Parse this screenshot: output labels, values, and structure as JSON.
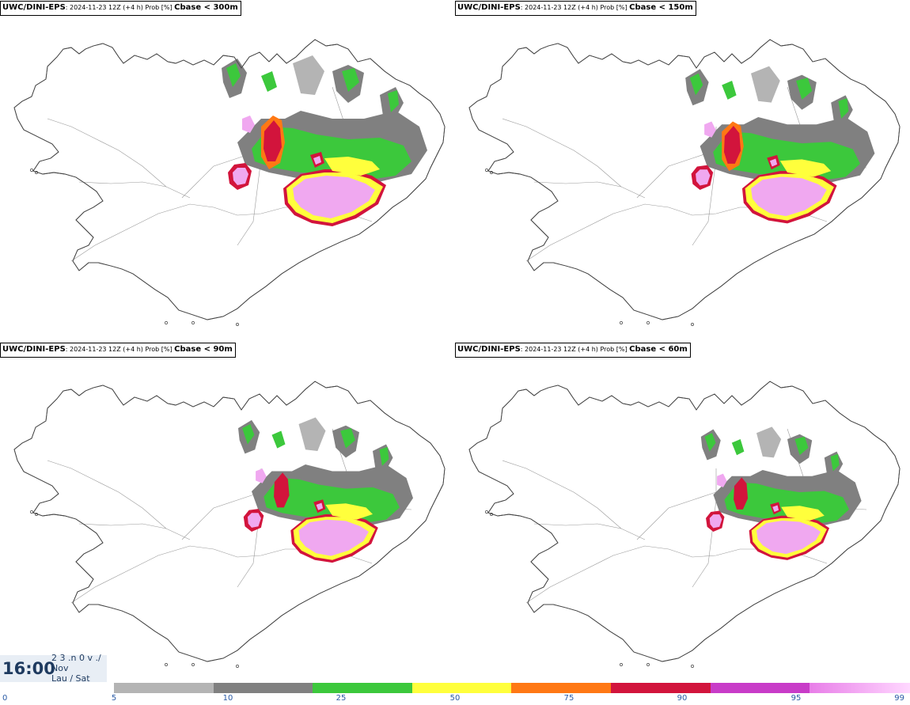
{
  "model": "UWC/DINI-EPS",
  "run_info": "2024-11-23 12Z (+4 h) Prob [%]",
  "panels": [
    {
      "field": "Cbase < 300m",
      "intensity": 4
    },
    {
      "field": "Cbase < 150m",
      "intensity": 3
    },
    {
      "field": "Cbase < 90m",
      "intensity": 2
    },
    {
      "field": "Cbase < 60m",
      "intensity": 1
    }
  ],
  "time": {
    "main": "16:00",
    "line1": "2 3 .n 0 v ./",
    "line2": "Nov",
    "line3": "Lau / Sat"
  },
  "legend": {
    "ticks": [
      "0",
      "5",
      "10",
      "25",
      "50",
      "75",
      "90",
      "95",
      "99"
    ],
    "colors": [
      "#b4b4b4",
      "#808080",
      "#3cc83c",
      "#ffff3c",
      "#ff7814",
      "#d2143c",
      "#c83cc8",
      "#ffc8ff"
    ]
  },
  "map_colors": {
    "coast": "#444444",
    "lightgray": "#b4b4b4",
    "darkgray": "#808080",
    "green": "#3cc83c",
    "yellow": "#ffff3c",
    "orange": "#ff7814",
    "red": "#d2143c",
    "purple": "#c83cc8",
    "pink": "#f0a8f0"
  }
}
